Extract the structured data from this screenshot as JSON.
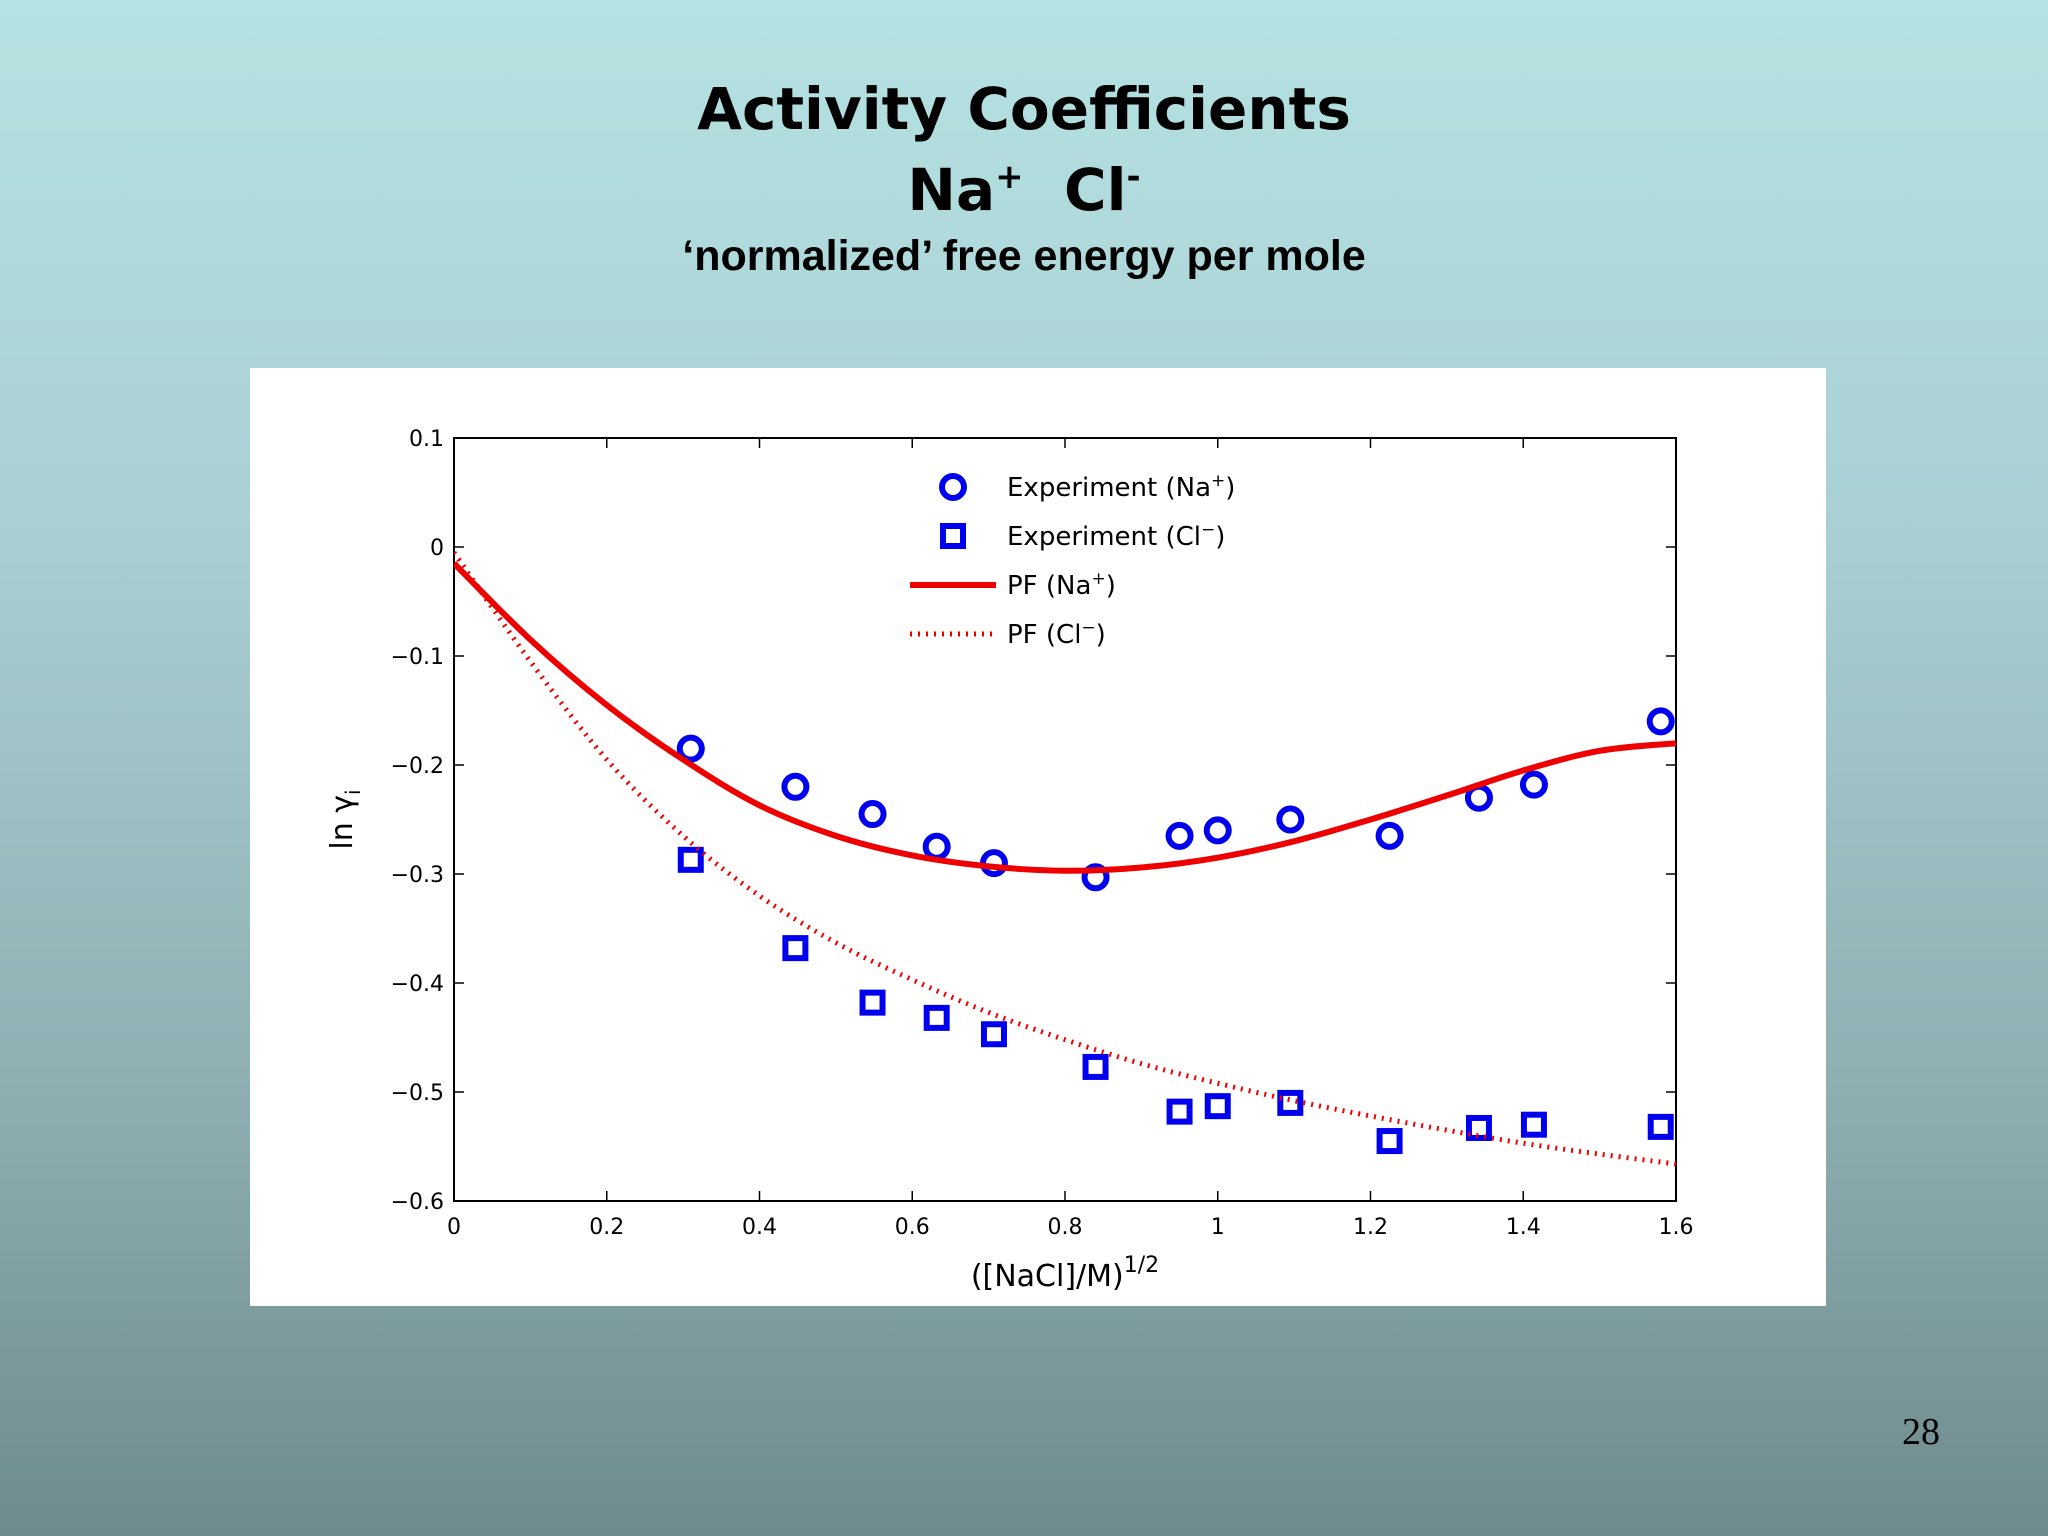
{
  "slide": {
    "title_line1": "Activity Coefficients",
    "title_line2_a": "Na",
    "title_line2_a_sup": "+",
    "title_line2_b": "Cl",
    "title_line2_b_sup": "-",
    "subtitle": "‘normalized’ free energy per mole",
    "page_number": "28"
  },
  "chart_data": {
    "type": "scatter",
    "xlabel_base": "([NaCl]/M)",
    "xlabel_sup": "1/2",
    "ylabel_base": "ln γ",
    "ylabel_sub": "i",
    "xlim": [
      0,
      1.6
    ],
    "ylim": [
      -0.6,
      0.1
    ],
    "xticks": [
      "0",
      "0.2",
      "0.4",
      "0.6",
      "0.8",
      "1",
      "1.2",
      "1.4",
      "1.6"
    ],
    "yticks": [
      "0.1",
      "0",
      "−0.1",
      "−0.2",
      "−0.3",
      "−0.4",
      "−0.5",
      "−0.6"
    ],
    "grid": false,
    "legend_position": "top-center",
    "series": [
      {
        "name_base": "Experiment (Na",
        "name_sup": "+",
        "name_end": ")",
        "kind": "points",
        "marker": "circle",
        "color": "#0000ee",
        "x": [
          0.31,
          0.447,
          0.548,
          0.632,
          0.707,
          0.84,
          0.95,
          1.0,
          1.095,
          1.225,
          1.342,
          1.414,
          1.58
        ],
        "y": [
          -0.185,
          -0.22,
          -0.245,
          -0.275,
          -0.29,
          -0.303,
          -0.265,
          -0.26,
          -0.25,
          -0.265,
          -0.23,
          -0.218,
          -0.16
        ]
      },
      {
        "name_base": "Experiment (Cl",
        "name_sup": "−",
        "name_end": ")",
        "kind": "points",
        "marker": "square",
        "color": "#0000ee",
        "x": [
          0.31,
          0.447,
          0.548,
          0.632,
          0.707,
          0.84,
          0.95,
          1.0,
          1.095,
          1.225,
          1.342,
          1.414,
          1.58
        ],
        "y": [
          -0.287,
          -0.368,
          -0.418,
          -0.432,
          -0.447,
          -0.477,
          -0.518,
          -0.513,
          -0.51,
          -0.545,
          -0.533,
          -0.53,
          -0.532
        ]
      },
      {
        "name_base": "PF (Na",
        "name_sup": "+",
        "name_end": ")",
        "kind": "line",
        "style": "solid",
        "color": "#ee0000",
        "x": [
          0,
          0.1,
          0.2,
          0.3,
          0.4,
          0.5,
          0.6,
          0.7,
          0.8,
          0.9,
          1.0,
          1.1,
          1.2,
          1.3,
          1.4,
          1.5,
          1.6
        ],
        "y": [
          -0.015,
          -0.085,
          -0.145,
          -0.195,
          -0.237,
          -0.265,
          -0.283,
          -0.293,
          -0.297,
          -0.294,
          -0.285,
          -0.27,
          -0.25,
          -0.228,
          -0.205,
          -0.187,
          -0.18
        ]
      },
      {
        "name_base": "PF (Cl",
        "name_sup": "−",
        "name_end": ")",
        "kind": "line",
        "style": "dotted",
        "color": "#ee0000",
        "x": [
          0,
          0.1,
          0.2,
          0.3,
          0.4,
          0.5,
          0.6,
          0.7,
          0.8,
          0.9,
          1.0,
          1.1,
          1.2,
          1.3,
          1.4,
          1.5,
          1.6
        ],
        "y": [
          -0.005,
          -0.105,
          -0.195,
          -0.265,
          -0.32,
          -0.363,
          -0.397,
          -0.427,
          -0.452,
          -0.474,
          -0.492,
          -0.508,
          -0.522,
          -0.535,
          -0.547,
          -0.557,
          -0.566
        ]
      }
    ]
  }
}
